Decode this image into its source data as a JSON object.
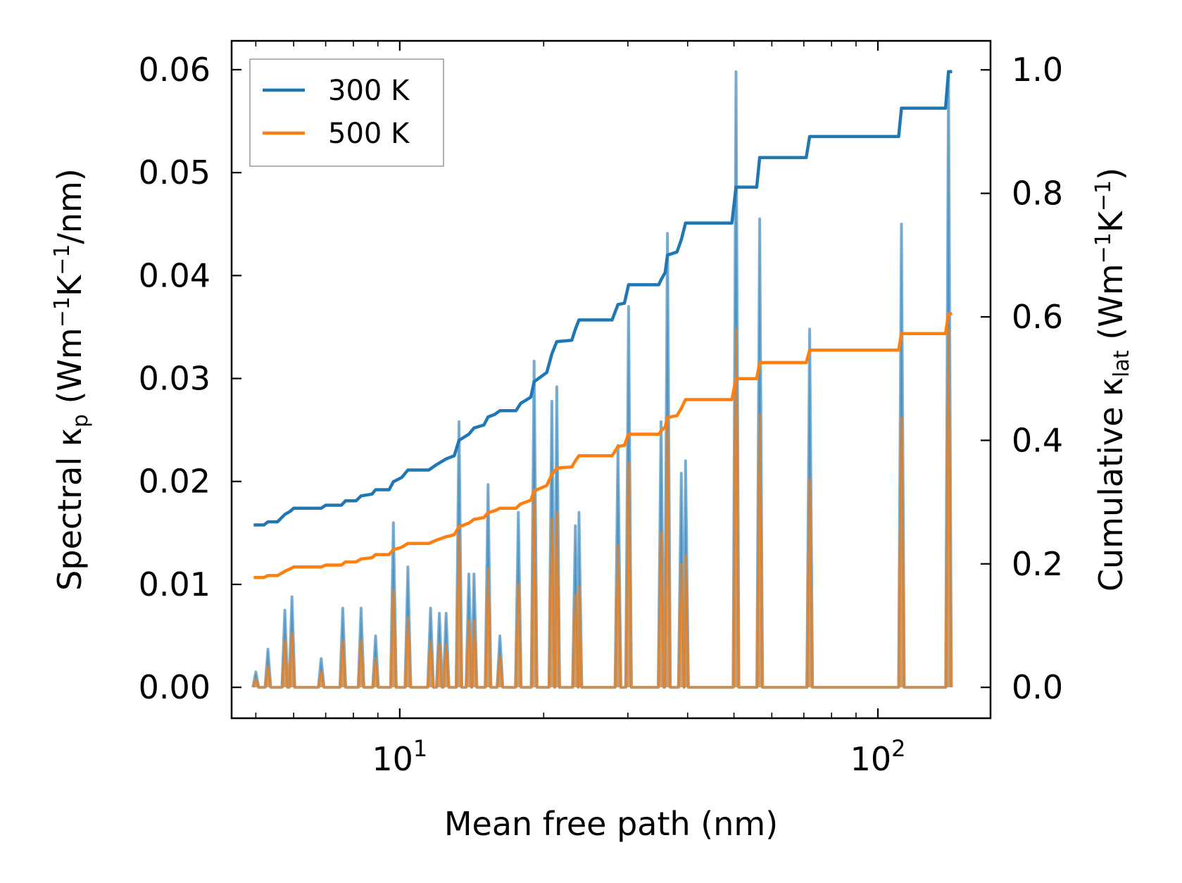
{
  "chart_data": {
    "type": "line",
    "title": "",
    "xlabel": "Mean free path (nm)",
    "ylabel_left": {
      "main": "Spectral κ",
      "sub": "p",
      "unit_pre": " (Wm",
      "sup1": "−1",
      "mid": "K",
      "sup2": "−1",
      "post": "/nm)"
    },
    "ylabel_right": {
      "main": "Cumulative κ",
      "sub": "lat",
      "unit_pre": " (Wm",
      "sup1": "−1",
      "mid": "K",
      "sup2": "−1",
      "post": ")"
    },
    "xscale": "log",
    "xlim": [
      4.45,
      172
    ],
    "ylim_left": [
      -0.003,
      0.0628
    ],
    "ylim_right": [
      -0.05,
      1.047
    ],
    "x_ticks": [
      {
        "value": 10,
        "base": "10",
        "exp": "1"
      },
      {
        "value": 100,
        "base": "10",
        "exp": "2"
      }
    ],
    "y_left_ticks": [
      {
        "value": 0.0,
        "label": "0.00"
      },
      {
        "value": 0.01,
        "label": "0.01"
      },
      {
        "value": 0.02,
        "label": "0.02"
      },
      {
        "value": 0.03,
        "label": "0.03"
      },
      {
        "value": 0.04,
        "label": "0.04"
      },
      {
        "value": 0.05,
        "label": "0.05"
      },
      {
        "value": 0.06,
        "label": "0.06"
      }
    ],
    "y_right_ticks": [
      {
        "value": 0.0,
        "label": "0.0"
      },
      {
        "value": 0.2,
        "label": "0.2"
      },
      {
        "value": 0.4,
        "label": "0.4"
      },
      {
        "value": 0.6,
        "label": "0.6"
      },
      {
        "value": 0.8,
        "label": "0.8"
      },
      {
        "value": 1.0,
        "label": "1.0"
      }
    ],
    "legend": {
      "position": "upper-left",
      "entries": [
        {
          "label": "300 K",
          "color": "#1f77b4"
        },
        {
          "label": "500 K",
          "color": "#ff7f0e"
        }
      ]
    },
    "spectral_series": [
      {
        "name": "300 K",
        "color": "#1f77b4",
        "peaks": [
          [
            5.0,
            0.0015
          ],
          [
            5.3,
            0.0037
          ],
          [
            5.75,
            0.0075
          ],
          [
            5.95,
            0.0088
          ],
          [
            6.85,
            0.0028
          ],
          [
            7.6,
            0.0077
          ],
          [
            8.3,
            0.0077
          ],
          [
            8.9,
            0.005
          ],
          [
            9.7,
            0.016
          ],
          [
            10.4,
            0.0117
          ],
          [
            11.6,
            0.0077
          ],
          [
            12.1,
            0.0072
          ],
          [
            12.5,
            0.0072
          ],
          [
            13.3,
            0.0258
          ],
          [
            13.95,
            0.011
          ],
          [
            14.3,
            0.011
          ],
          [
            15.3,
            0.0197
          ],
          [
            16.2,
            0.005
          ],
          [
            17.7,
            0.017
          ],
          [
            19.1,
            0.0317
          ],
          [
            20.8,
            0.0278
          ],
          [
            21.3,
            0.0292
          ],
          [
            23.3,
            0.0157
          ],
          [
            23.7,
            0.017
          ],
          [
            28.6,
            0.0235
          ],
          [
            30.1,
            0.037
          ],
          [
            35.2,
            0.0258
          ],
          [
            36.3,
            0.0441
          ],
          [
            38.8,
            0.0208
          ],
          [
            39.6,
            0.022
          ],
          [
            50.5,
            0.0598
          ],
          [
            56.6,
            0.0455
          ],
          [
            72.0,
            0.0348
          ],
          [
            112.0,
            0.045
          ],
          [
            140.5,
            0.0598
          ]
        ]
      },
      {
        "name": "500 K",
        "color": "#ff7f0e",
        "peaks": [
          [
            5.0,
            0.0008
          ],
          [
            5.3,
            0.002
          ],
          [
            5.75,
            0.0045
          ],
          [
            5.95,
            0.0052
          ],
          [
            6.85,
            0.0015
          ],
          [
            7.6,
            0.0045
          ],
          [
            8.3,
            0.0045
          ],
          [
            8.9,
            0.0028
          ],
          [
            9.7,
            0.0094
          ],
          [
            10.4,
            0.0068
          ],
          [
            11.6,
            0.0045
          ],
          [
            12.1,
            0.0042
          ],
          [
            12.5,
            0.0042
          ],
          [
            13.3,
            0.0148
          ],
          [
            13.95,
            0.0065
          ],
          [
            14.3,
            0.0065
          ],
          [
            15.3,
            0.0115
          ],
          [
            16.2,
            0.003
          ],
          [
            17.7,
            0.01
          ],
          [
            19.1,
            0.0185
          ],
          [
            20.8,
            0.0163
          ],
          [
            21.3,
            0.017
          ],
          [
            23.3,
            0.009
          ],
          [
            23.7,
            0.0098
          ],
          [
            28.6,
            0.0138
          ],
          [
            30.1,
            0.0218
          ],
          [
            35.2,
            0.015
          ],
          [
            36.3,
            0.0258
          ],
          [
            38.8,
            0.012
          ],
          [
            39.6,
            0.0128
          ],
          [
            50.5,
            0.0348
          ],
          [
            56.6,
            0.0265
          ],
          [
            72.0,
            0.0202
          ],
          [
            112.0,
            0.0262
          ],
          [
            140.5,
            0.0348
          ]
        ]
      }
    ],
    "cumulative_series": [
      {
        "name": "300 K",
        "color": "#1f77b4",
        "points": [
          [
            4.95,
            0.263
          ],
          [
            5.2,
            0.263
          ],
          [
            5.3,
            0.268
          ],
          [
            5.55,
            0.268
          ],
          [
            5.75,
            0.28
          ],
          [
            5.9,
            0.285
          ],
          [
            6.0,
            0.29
          ],
          [
            6.85,
            0.29
          ],
          [
            7.0,
            0.295
          ],
          [
            7.55,
            0.295
          ],
          [
            7.7,
            0.302
          ],
          [
            8.1,
            0.302
          ],
          [
            8.3,
            0.31
          ],
          [
            8.75,
            0.313
          ],
          [
            8.9,
            0.32
          ],
          [
            9.5,
            0.32
          ],
          [
            9.7,
            0.333
          ],
          [
            10.1,
            0.34
          ],
          [
            10.4,
            0.352
          ],
          [
            11.5,
            0.352
          ],
          [
            11.9,
            0.36
          ],
          [
            12.2,
            0.365
          ],
          [
            12.5,
            0.37
          ],
          [
            13.0,
            0.375
          ],
          [
            13.3,
            0.4
          ],
          [
            13.95,
            0.41
          ],
          [
            14.3,
            0.42
          ],
          [
            15.0,
            0.425
          ],
          [
            15.3,
            0.438
          ],
          [
            15.8,
            0.442
          ],
          [
            16.2,
            0.448
          ],
          [
            17.5,
            0.448
          ],
          [
            17.9,
            0.46
          ],
          [
            18.8,
            0.47
          ],
          [
            19.1,
            0.495
          ],
          [
            20.3,
            0.51
          ],
          [
            20.8,
            0.54
          ],
          [
            21.3,
            0.56
          ],
          [
            22.9,
            0.562
          ],
          [
            23.3,
            0.58
          ],
          [
            23.7,
            0.595
          ],
          [
            27.8,
            0.595
          ],
          [
            28.6,
            0.62
          ],
          [
            29.5,
            0.622
          ],
          [
            30.1,
            0.652
          ],
          [
            34.8,
            0.652
          ],
          [
            35.2,
            0.66
          ],
          [
            35.9,
            0.672
          ],
          [
            36.3,
            0.7
          ],
          [
            38.0,
            0.705
          ],
          [
            38.8,
            0.725
          ],
          [
            39.6,
            0.752
          ],
          [
            49.5,
            0.752
          ],
          [
            50.5,
            0.81
          ],
          [
            55.8,
            0.81
          ],
          [
            56.6,
            0.858
          ],
          [
            70.8,
            0.858
          ],
          [
            72.0,
            0.892
          ],
          [
            110.5,
            0.892
          ],
          [
            112.0,
            0.938
          ],
          [
            138.5,
            0.938
          ],
          [
            140.5,
            0.997
          ],
          [
            143,
            0.997
          ]
        ]
      },
      {
        "name": "500 K",
        "color": "#ff7f0e",
        "points": [
          [
            4.95,
            0.178
          ],
          [
            5.2,
            0.178
          ],
          [
            5.3,
            0.181
          ],
          [
            5.55,
            0.181
          ],
          [
            5.75,
            0.188
          ],
          [
            5.9,
            0.192
          ],
          [
            6.0,
            0.195
          ],
          [
            6.85,
            0.195
          ],
          [
            7.0,
            0.198
          ],
          [
            7.55,
            0.198
          ],
          [
            7.7,
            0.203
          ],
          [
            8.1,
            0.203
          ],
          [
            8.3,
            0.208
          ],
          [
            8.75,
            0.21
          ],
          [
            8.9,
            0.215
          ],
          [
            9.5,
            0.215
          ],
          [
            9.7,
            0.223
          ],
          [
            10.1,
            0.227
          ],
          [
            10.4,
            0.233
          ],
          [
            11.5,
            0.233
          ],
          [
            11.9,
            0.238
          ],
          [
            12.2,
            0.241
          ],
          [
            12.5,
            0.244
          ],
          [
            13.0,
            0.247
          ],
          [
            13.3,
            0.26
          ],
          [
            13.95,
            0.266
          ],
          [
            14.3,
            0.272
          ],
          [
            15.0,
            0.275
          ],
          [
            15.3,
            0.283
          ],
          [
            15.8,
            0.286
          ],
          [
            16.2,
            0.29
          ],
          [
            17.5,
            0.29
          ],
          [
            17.9,
            0.297
          ],
          [
            18.8,
            0.303
          ],
          [
            19.1,
            0.318
          ],
          [
            20.3,
            0.327
          ],
          [
            20.8,
            0.345
          ],
          [
            21.3,
            0.355
          ],
          [
            22.9,
            0.357
          ],
          [
            23.3,
            0.367
          ],
          [
            23.7,
            0.375
          ],
          [
            27.8,
            0.375
          ],
          [
            28.6,
            0.39
          ],
          [
            29.5,
            0.392
          ],
          [
            30.1,
            0.41
          ],
          [
            34.8,
            0.41
          ],
          [
            35.2,
            0.415
          ],
          [
            35.9,
            0.422
          ],
          [
            36.3,
            0.437
          ],
          [
            38.0,
            0.44
          ],
          [
            38.8,
            0.452
          ],
          [
            39.6,
            0.466
          ],
          [
            49.5,
            0.466
          ],
          [
            50.5,
            0.5
          ],
          [
            55.8,
            0.5
          ],
          [
            56.6,
            0.526
          ],
          [
            70.8,
            0.526
          ],
          [
            72.0,
            0.546
          ],
          [
            110.5,
            0.546
          ],
          [
            112.0,
            0.573
          ],
          [
            138.5,
            0.573
          ],
          [
            140.5,
            0.605
          ],
          [
            143,
            0.605
          ]
        ]
      }
    ]
  }
}
